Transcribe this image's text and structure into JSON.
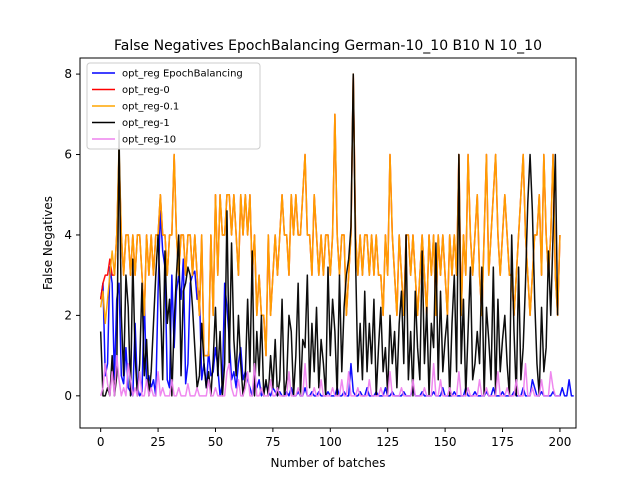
{
  "chart_data": {
    "type": "line",
    "title": "False Negatives EpochBalancing German-10_10 B10 N 10_10",
    "xlabel": "Number of batches",
    "ylabel": "False Negatives",
    "xlim": [
      -9,
      207
    ],
    "ylim": [
      -0.8,
      8.4
    ],
    "xticks": [
      0,
      25,
      50,
      75,
      100,
      125,
      150,
      175,
      200
    ],
    "yticks": [
      0,
      2,
      4,
      6,
      8
    ],
    "grid": false,
    "legend_position": "top-left",
    "series": [
      {
        "name": "opt_reg EpochBalancing",
        "color": "#0000ff",
        "values": [
          2.4,
          2.8,
          0.5,
          0.8,
          3.2,
          2.8,
          0.4,
          2.4,
          2.8,
          0.5,
          0.3,
          1.2,
          0.2,
          0.1,
          0.0,
          1.8,
          0.2,
          0.0,
          0.1,
          2.4,
          0.3,
          0.5,
          0.2,
          0.4,
          0.0,
          2.6,
          4.6,
          3.6,
          3.2,
          0.4,
          0.2,
          3.0,
          1.2,
          2.6,
          3.0,
          2.4,
          3.4,
          0.3,
          0.8,
          2.8,
          3.0,
          3.1,
          2.4,
          2.6,
          0.4,
          0.8,
          0.2,
          1.1,
          0.5,
          0.6,
          1.2,
          0.7,
          0.0,
          0.3,
          2.8,
          2.2,
          1.4,
          0.4,
          0.6,
          0.2,
          0.8,
          1.2,
          0.4,
          0.6,
          0.4,
          0.2,
          0.0,
          0.3,
          0.2,
          0.4,
          0.0,
          0.1,
          0.3,
          0.1,
          0.0,
          0.2,
          0.1,
          0.0,
          0.1,
          0.0,
          0.0,
          0.1,
          0.0,
          0.2,
          0.0,
          0.0,
          0.1,
          0.0,
          0.0,
          0.2,
          0.0,
          0.0,
          0.1,
          0.0,
          0.0,
          0.1,
          0.0,
          0.0,
          0.0,
          0.1,
          0.0,
          0.0,
          0.0,
          0.2,
          0.0,
          0.0,
          0.1,
          0.0,
          0.0,
          0.8,
          0.1,
          0.0,
          0.0,
          0.1,
          0.0,
          0.0,
          0.2,
          0.0,
          0.0,
          0.0,
          0.1,
          0.0,
          0.0,
          0.0,
          0.2,
          0.0,
          0.0,
          0.1,
          0.0,
          0.0,
          0.0,
          0.0,
          0.1,
          0.0,
          0.0,
          0.0,
          0.2,
          0.0,
          0.0,
          0.0,
          0.1,
          0.0,
          0.0,
          0.0,
          0.0,
          0.1,
          0.0,
          0.0,
          0.0,
          0.2,
          0.0,
          0.0,
          0.0,
          0.0,
          0.1,
          0.0,
          0.0,
          0.0,
          0.0,
          0.2,
          0.0,
          0.0,
          0.0,
          0.1,
          0.0,
          0.0,
          0.0,
          0.0,
          0.1,
          0.0,
          0.0,
          0.2,
          0.0,
          0.0,
          0.0,
          0.1,
          0.0,
          0.0,
          0.0,
          0.0,
          0.1,
          0.0,
          0.0,
          0.0,
          0.2,
          0.0,
          0.0,
          0.0,
          0.4,
          0.2,
          0.0,
          0.0,
          0.1,
          0.0,
          0.0,
          0.0,
          0.0,
          0.1,
          0.0,
          0.0,
          0.0,
          0.2,
          0.0,
          0.0,
          0.4,
          0.0,
          0.0
        ]
      },
      {
        "name": "opt_reg-0",
        "color": "#ff0000",
        "values": [
          2.4,
          2.8,
          3.0,
          3.0,
          3.4,
          3.0,
          3.0,
          4.0,
          6.0,
          4.0,
          3.0,
          4.0,
          4.0,
          3.0,
          4.0,
          3.0,
          4.0,
          4.0,
          3.0,
          2.0,
          4.0,
          3.0,
          4.0,
          3.0,
          4.0,
          4.0,
          5.0,
          4.0,
          4.0,
          3.0,
          4.0,
          4.0,
          6.0,
          4.0,
          3.0,
          4.0,
          4.0,
          3.0,
          4.0,
          4.0,
          3.0,
          4.0,
          3.0,
          2.0,
          4.0,
          1.0,
          1.0,
          1.0,
          4.0,
          2.0,
          5.0,
          3.0,
          5.0,
          4.0,
          4.0,
          5.0,
          5.0,
          4.0,
          5.0,
          4.0,
          3.0,
          5.0,
          4.0,
          5.0,
          4.0,
          5.0,
          3.0,
          4.0,
          2.0,
          3.0,
          2.0,
          2.0,
          1.0,
          4.0,
          2.0,
          3.0,
          4.0,
          3.0,
          4.0,
          5.0,
          4.0,
          4.0,
          3.0,
          5.0,
          4.0,
          5.0,
          4.0,
          4.0,
          5.0,
          6.0,
          4.0,
          4.0,
          3.0,
          5.0,
          4.0,
          3.0,
          4.0,
          3.0,
          4.0,
          4.0,
          3.0,
          4.0,
          7.0,
          4.0,
          3.0,
          4.0,
          4.0,
          2.0,
          3.0,
          4.0,
          8.0,
          4.0,
          3.0,
          4.0,
          3.0,
          4.0,
          4.0,
          3.0,
          4.0,
          3.0,
          4.0,
          3.0,
          3.0,
          2.0,
          4.0,
          3.0,
          6.0,
          4.0,
          3.0,
          2.0,
          4.0,
          3.0,
          2.0,
          4.0,
          4.0,
          3.0,
          4.0,
          3.0,
          2.0,
          3.0,
          4.0,
          3.0,
          2.0,
          4.0,
          3.0,
          4.0,
          2.0,
          4.0,
          3.0,
          4.0,
          3.0,
          2.0,
          4.0,
          3.0,
          4.0,
          3.0,
          6.0,
          2.0,
          4.0,
          3.0,
          6.0,
          4.0,
          3.0,
          4.0,
          5.0,
          3.0,
          2.0,
          4.0,
          6.0,
          3.0,
          4.0,
          5.0,
          6.0,
          4.0,
          3.0,
          4.0,
          5.0,
          4.0,
          3.0,
          3.0,
          2.0,
          3.0,
          4.0,
          5.0,
          6.0,
          4.0,
          3.0,
          2.0,
          3.0,
          4.0,
          4.0,
          5.0,
          3.0,
          6.0,
          4.0,
          3.0,
          4.0,
          6.0,
          3.0,
          2.0,
          4.0
        ]
      },
      {
        "name": "opt_reg-0.1",
        "color": "#ffa500",
        "values": [
          2.2,
          2.6,
          1.8,
          2.4,
          3.0,
          3.6,
          3.0,
          4.0,
          6.2,
          4.0,
          3.0,
          4.0,
          4.0,
          3.0,
          4.0,
          3.0,
          4.0,
          4.0,
          3.0,
          2.0,
          4.0,
          3.0,
          4.0,
          3.0,
          4.0,
          4.0,
          5.0,
          4.0,
          4.0,
          3.0,
          4.0,
          4.0,
          6.0,
          4.0,
          3.0,
          4.0,
          4.0,
          3.0,
          4.0,
          4.0,
          3.0,
          4.0,
          3.0,
          2.0,
          4.0,
          1.0,
          1.0,
          1.0,
          4.0,
          2.0,
          5.0,
          3.0,
          5.0,
          4.0,
          4.0,
          5.0,
          5.0,
          4.0,
          5.0,
          4.0,
          3.0,
          5.0,
          4.0,
          5.0,
          4.0,
          5.0,
          3.0,
          4.0,
          2.0,
          3.0,
          2.0,
          2.0,
          1.0,
          4.0,
          2.0,
          3.0,
          4.0,
          3.0,
          4.0,
          5.0,
          4.0,
          4.0,
          3.0,
          5.0,
          4.0,
          5.0,
          4.0,
          4.0,
          5.0,
          6.0,
          4.0,
          4.0,
          3.0,
          5.0,
          4.0,
          3.0,
          4.0,
          3.0,
          4.0,
          4.0,
          3.0,
          4.0,
          7.0,
          4.0,
          3.0,
          4.0,
          4.0,
          2.0,
          3.0,
          4.0,
          8.0,
          4.0,
          3.0,
          4.0,
          3.0,
          4.0,
          4.0,
          3.0,
          4.0,
          3.0,
          4.0,
          3.0,
          3.0,
          2.0,
          4.0,
          3.0,
          6.0,
          4.0,
          3.0,
          2.0,
          4.0,
          3.0,
          2.0,
          4.0,
          4.0,
          3.0,
          4.0,
          3.0,
          2.0,
          3.0,
          4.0,
          3.0,
          2.0,
          4.0,
          3.0,
          4.0,
          2.0,
          4.0,
          3.0,
          4.0,
          3.0,
          2.0,
          4.0,
          3.0,
          4.0,
          3.0,
          6.0,
          2.0,
          4.0,
          3.0,
          6.0,
          4.0,
          3.0,
          4.0,
          5.0,
          3.0,
          2.0,
          4.0,
          6.0,
          3.0,
          4.0,
          5.0,
          6.0,
          4.0,
          3.0,
          4.0,
          5.0,
          4.0,
          3.0,
          3.0,
          2.0,
          3.0,
          4.0,
          5.0,
          6.0,
          4.0,
          3.0,
          2.0,
          3.0,
          4.0,
          4.0,
          5.0,
          3.0,
          6.0,
          4.0,
          3.0,
          4.0,
          6.0,
          3.0,
          2.0,
          4.0
        ]
      },
      {
        "name": "opt_reg-1",
        "color": "#000000",
        "values": [
          1.6,
          0.0,
          0.0,
          0.2,
          0.0,
          1.0,
          0.0,
          0.5,
          6.6,
          2.0,
          0.5,
          3.0,
          2.2,
          0.0,
          3.4,
          1.0,
          0.0,
          0.8,
          2.8,
          0.5,
          1.4,
          0.0,
          0.6,
          1.8,
          3.0,
          4.0,
          2.4,
          0.4,
          3.6,
          1.8,
          2.4,
          0.0,
          1.8,
          3.0,
          4.0,
          0.5,
          2.6,
          2.8,
          3.2,
          3.0,
          2.2,
          1.2,
          0.2,
          0.5,
          1.8,
          0.8,
          0.2,
          0.6,
          0.0,
          0.9,
          2.2,
          0.5,
          1.6,
          0.0,
          0.8,
          4.6,
          0.8,
          3.8,
          1.4,
          0.5,
          2.0,
          0.8,
          0.0,
          0.5,
          2.4,
          0.6,
          3.6,
          0.0,
          1.6,
          0.5,
          2.0,
          0.0,
          0.4,
          0.0,
          1.0,
          0.2,
          1.4,
          0.0,
          0.4,
          2.4,
          0.0,
          0.4,
          2.0,
          1.6,
          0.0,
          1.0,
          2.8,
          0.0,
          1.4,
          1.2,
          3.0,
          0.2,
          1.8,
          0.6,
          2.2,
          0.2,
          1.4,
          0.8,
          0.0,
          3.2,
          1.0,
          2.4,
          1.6,
          0.0,
          3.0,
          0.6,
          2.2,
          3.0,
          3.4,
          4.2,
          8.0,
          3.4,
          0.6,
          1.8,
          0.4,
          2.6,
          0.6,
          1.8,
          0.8,
          2.4,
          0.0,
          1.2,
          2.2,
          0.6,
          1.2,
          0.0,
          2.0,
          0.8,
          1.6,
          0.2,
          1.8,
          2.6,
          0.8,
          4.0,
          0.4,
          1.6,
          0.0,
          2.6,
          1.2,
          0.4,
          3.6,
          0.8,
          2.2,
          0.0,
          1.8,
          1.2,
          3.8,
          0.4,
          2.6,
          0.6,
          1.4,
          2.0,
          0.0,
          1.8,
          3.0,
          0.6,
          6.0,
          0.8,
          2.4,
          0.0,
          1.6,
          3.2,
          0.4,
          0.8,
          1.6,
          0.8,
          3.2,
          0.0,
          2.2,
          1.4,
          0.4,
          3.2,
          0.0,
          2.4,
          0.6,
          1.4,
          2.0,
          0.8,
          0.0,
          4.0,
          1.6,
          0.0,
          3.2,
          0.4,
          1.2,
          2.8,
          4.8,
          6.0,
          4.6,
          2.4,
          0.8,
          0.0,
          2.2,
          0.6,
          1.2,
          3.6,
          2.0,
          4.0,
          6.0,
          2.0
        ]
      },
      {
        "name": "opt_reg-10",
        "color": "#ee82ee",
        "values": [
          0.0,
          0.2,
          0.8,
          0.3,
          0.0,
          0.6,
          0.0,
          1.0,
          0.4,
          0.0,
          0.2,
          0.0,
          0.8,
          0.4,
          0.0,
          0.2,
          0.0,
          0.6,
          0.0,
          0.0,
          0.4,
          0.0,
          0.2,
          0.0,
          0.0,
          0.6,
          0.0,
          0.2,
          0.0,
          0.0,
          0.0,
          0.4,
          0.0,
          0.0,
          0.2,
          0.0,
          0.0,
          0.0,
          0.3,
          0.0,
          0.0,
          0.0,
          0.2,
          0.0,
          0.0,
          0.0,
          0.0,
          0.4,
          0.0,
          0.0,
          0.2,
          0.0,
          0.0,
          0.0,
          0.0,
          0.6,
          0.8,
          0.2,
          0.0,
          0.0,
          0.4,
          0.0,
          0.0,
          0.2,
          0.6,
          0.0,
          0.0,
          0.8,
          0.0,
          0.0,
          0.2,
          0.0,
          0.0,
          0.0,
          0.4,
          0.0,
          0.0,
          0.2,
          0.0,
          0.0,
          0.0,
          0.0,
          0.6,
          0.0,
          0.0,
          0.0,
          0.2,
          0.0,
          0.0,
          0.8,
          0.0,
          0.0,
          0.0,
          0.2,
          0.0,
          0.0,
          0.4,
          0.0,
          0.0,
          0.0,
          0.0,
          0.2,
          0.0,
          0.0,
          0.0,
          0.4,
          0.0,
          0.0,
          0.6,
          0.0,
          0.0,
          0.0,
          0.2,
          0.0,
          0.0,
          0.0,
          0.0,
          0.4,
          0.0,
          0.0,
          0.0,
          0.0,
          0.2,
          0.0,
          0.0,
          0.0,
          0.6,
          0.0,
          0.0,
          0.0,
          0.0,
          0.2,
          0.0,
          0.0,
          0.0,
          0.0,
          0.4,
          0.0,
          0.0,
          0.0,
          0.0,
          0.2,
          0.0,
          0.0,
          0.0,
          0.8,
          0.0,
          0.0,
          0.4,
          0.0,
          0.0,
          0.0,
          0.2,
          0.0,
          0.0,
          0.0,
          0.6,
          0.0,
          0.0,
          0.0,
          0.2,
          0.0,
          0.0,
          0.0,
          0.0,
          0.4,
          0.0,
          0.0,
          0.2,
          0.0,
          0.0,
          0.0,
          0.0,
          0.6,
          0.0,
          0.0,
          0.0,
          0.2,
          0.0,
          0.0,
          0.0,
          0.4,
          0.0,
          0.0,
          0.0,
          0.8,
          0.0,
          0.0,
          0.2,
          0.0,
          0.0,
          0.0,
          0.4,
          0.0,
          0.0,
          0.0,
          0.6,
          0.2,
          0.0,
          0.0,
          0.0
        ]
      }
    ]
  }
}
